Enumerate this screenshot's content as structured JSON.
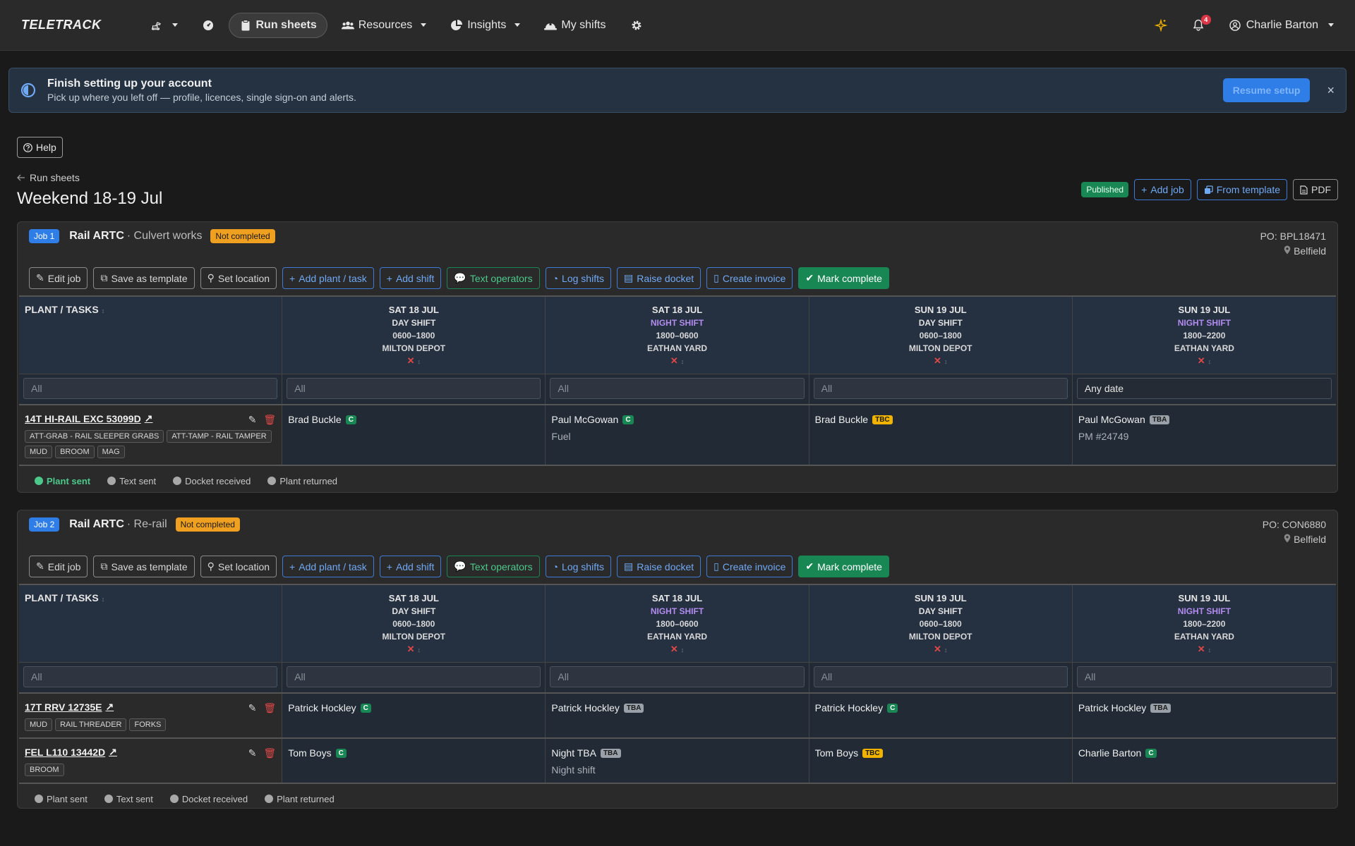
{
  "nav": {
    "brand": "TELETRACK",
    "run_sheets": "Run sheets",
    "resources": "Resources",
    "insights": "Insights",
    "my_shifts": "My shifts",
    "notifications_count": "4",
    "user": "Charlie Barton"
  },
  "setup": {
    "title": "Finish setting up your account",
    "subtitle": "Pick up where you left off — profile, licences, single sign-on and alerts.",
    "resume": "Resume setup",
    "close": "×"
  },
  "page": {
    "help": "Help",
    "back": "Run sheets",
    "title": "Weekend 18-19 Jul",
    "status": "Published",
    "add_job": "Add job",
    "from_template": "From template",
    "pdf": "PDF"
  },
  "actions": {
    "edit_job": "Edit job",
    "save_template": "Save as template",
    "set_location": "Set location",
    "add_plant": "Add plant / task",
    "add_shift": "Add shift",
    "text_operators": "Text operators",
    "log_shifts": "Log shifts",
    "raise_docket": "Raise docket",
    "create_invoice": "Create invoice",
    "mark_complete": "Mark complete"
  },
  "grid": {
    "plant_header": "PLANT / TASKS",
    "filter_all": "All",
    "x": "✕",
    "days": [
      {
        "date": "SAT 18 JUL",
        "shift": "DAY SHIFT",
        "hours": "0600–1800",
        "location": "MILTON DEPOT"
      },
      {
        "date": "SAT 18 JUL",
        "shift": "NIGHT SHIFT",
        "hours": "1800–0600",
        "location": "EATHAN YARD"
      },
      {
        "date": "SUN 19 JUL",
        "shift": "DAY SHIFT",
        "hours": "0600–1800",
        "location": "MILTON DEPOT"
      },
      {
        "date": "SUN 19 JUL",
        "shift": "NIGHT SHIFT",
        "hours": "1800–2200",
        "location": "EATHAN YARD"
      }
    ]
  },
  "footer_labels": {
    "plant_sent": "Plant sent",
    "text_sent": "Text sent",
    "docket_received": "Docket received",
    "plant_returned": "Plant returned"
  },
  "jobs": [
    {
      "tag": "Job 1",
      "client": "Rail ARTC",
      "type": "· Culvert works",
      "status": "Not completed",
      "po": "PO: BPL18471",
      "location": "Belfield",
      "last_filter": "Any date",
      "rows": [
        {
          "plant": "14T HI-RAIL EXC 53099D",
          "chips": [
            "ATT-GRAB - RAIL SLEEPER GRABS",
            "ATT-TAMP - RAIL TAMPER",
            "MUD",
            "BROOM",
            "MAG"
          ],
          "cells": [
            {
              "name": "Brad Buckle",
              "badge": "C",
              "note": ""
            },
            {
              "name": "Paul McGowan",
              "badge": "C",
              "note": "Fuel"
            },
            {
              "name": "Brad Buckle",
              "badge": "TBC",
              "note": ""
            },
            {
              "name": "Paul McGowan",
              "badge": "TBA",
              "note": "PM #24749"
            }
          ]
        }
      ]
    },
    {
      "tag": "Job 2",
      "client": "Rail ARTC",
      "type": "· Re-rail",
      "status": "Not completed",
      "po": "PO: CON6880",
      "location": "Belfield",
      "last_filter": "All",
      "rows": [
        {
          "plant": "17T RRV 12735E",
          "chips": [
            "MUD",
            "RAIL THREADER",
            "FORKS"
          ],
          "cells": [
            {
              "name": "Patrick Hockley",
              "badge": "C",
              "note": ""
            },
            {
              "name": "Patrick Hockley",
              "badge": "TBA",
              "note": ""
            },
            {
              "name": "Patrick Hockley",
              "badge": "C",
              "note": ""
            },
            {
              "name": "Patrick Hockley",
              "badge": "TBA",
              "note": ""
            }
          ]
        },
        {
          "plant": "FEL L110 13442D",
          "chips": [
            "BROOM"
          ],
          "cells": [
            {
              "name": "Tom Boys",
              "badge": "C",
              "note": ""
            },
            {
              "name": "Night TBA",
              "badge": "TBA",
              "note": "Night shift"
            },
            {
              "name": "Tom Boys",
              "badge": "TBC",
              "note": ""
            },
            {
              "name": "Charlie Barton",
              "badge": "C",
              "note": ""
            }
          ]
        }
      ]
    }
  ]
}
